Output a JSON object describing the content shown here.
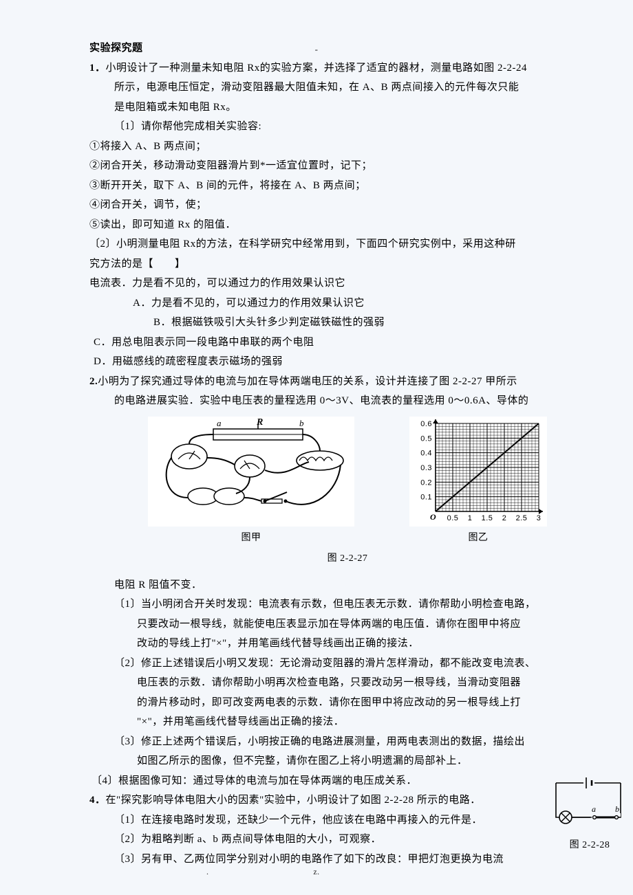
{
  "page": {
    "top_dash": "-",
    "footer_dot": ".",
    "footer_center": "z."
  },
  "heading": "实验探究题",
  "q1": {
    "num": "1．",
    "line1": "小明设计了一种测量未知电阻 Rx的实验方案，并选择了适宜的器材，测量电路如图 2-2-24",
    "line2": "所示，电源电压恒定，滑动变阻器最大阻值未知，在 A、B 两点间接入的元件每次只能",
    "line3": "是电阻箱或未知电阻 Rx。",
    "sub1": "〔1〕请你帮他完成相关实验容:",
    "p1": "①将接入 A、B 两点间；",
    "p2": "②闭合开关，移动滑动变阻器滑片到*一适宜位置时，记下；",
    "p3": "③断开开关，取下 A、B 间的元件，将接在 A、B 两点间；",
    "p4": "④闭合开关，调节，使；",
    "p5": "⑤读出，即可知道 Rx 的阻值．",
    "sub2a": "〔2〕小明测量电阻 Rx的方法，在科学研究中经常用到，下面四个研究实例中，采用这种研",
    "sub2b": "究方法的是【　　】",
    "hint": "电流表．力是看不见的，可以通过力的作用效果认识它",
    "optA": "A．力是看不见的，可以通过力的作用效果认识它",
    "optB": "B．根据磁铁吸引大头针多少判定磁铁磁性的强弱",
    "optC": "C．用总电阻表示同一段电路中串联的两个电阻",
    "optD": "D．用磁感线的疏密程度表示磁场的强弱"
  },
  "q2": {
    "num": "2.",
    "line1": "小明为了探究通过导体的电流与加在导体两端电压的关系，设计并连接了图 2-2-27 甲所示",
    "line2": "的电路进展实验．实验中电压表的量程选用 0～3V、电流表的量程选用 0～0.6A、导体的",
    "fig_left_caption": "图甲",
    "fig_right_caption": "图乙",
    "fig_main_caption": "图 2-2-27",
    "fig_left_labels": {
      "a": "a",
      "R": "R",
      "b": "b"
    },
    "chart": {
      "type": "line",
      "background": "#ffffff",
      "axis_color": "#000000",
      "grid_color": "#000000",
      "line_color": "#000000",
      "line_width": 2,
      "xlim": [
        0,
        3
      ],
      "ylim": [
        0,
        0.6
      ],
      "xticks": [
        0.5,
        1,
        1.5,
        2,
        2.5,
        3
      ],
      "xtick_labels": [
        "0.5",
        "1",
        "1.5",
        "2",
        "2.5",
        "3"
      ],
      "yticks": [
        0.1,
        0.2,
        0.3,
        0.4,
        0.5,
        0.6
      ],
      "ytick_labels": [
        "0.1",
        "0.2",
        "0.3",
        "0.4",
        "0.5",
        "0.6"
      ],
      "origin_label": "O",
      "line_points": [
        [
          0,
          0
        ],
        [
          3,
          0.6
        ]
      ],
      "tick_fontsize": 11
    },
    "line3": "电阻 R 阻值不变．",
    "s1a": "〔1〕当小明闭合开关时发现：电流表有示数，但电压表无示数．请你帮助小明检查电路，",
    "s1b": "只要改动一根导线，就能使电压表显示加在导体两端的电压值．请你在图甲中将应",
    "s1c": "改动的导线上打\"×\"，并用笔画线代替导线画出正确的接法．",
    "s2a": "〔2〕修正上述错误后小明又发现：无论滑动变阻器的滑片怎样滑动，都不能改变电流表、",
    "s2b": "电压表的示数．请你帮助小明再次检查电路，只要改动另一根导线，当滑动变阻器",
    "s2c": "的滑片移动时，即可改变两电表的示数．请你在图甲中将应改动的另一根导线上打",
    "s2d": "\"×\"，并用笔画线代替导线画出正确的接法．",
    "s3a": "〔3〕修正上述两个错误后，小明按正确的电路进展测量，用两电表测出的数据，描绘出",
    "s3b": "如图乙所示的图像，但不完整，请你在图乙上将小明遗漏的局部补上．",
    "s4": "〔4〕根据图像可知：通过导体的电流与加在导体两端的电压成关系．"
  },
  "q4": {
    "num": "4．",
    "line1": "在\"探究影响导体电阻大小的因素\"实验中，小明设计了如图 2-2-28 所示的电路．",
    "s1": "〔1〕在连接电路时发现，还缺少一个元件，他应该在电路中再接入的元件是．",
    "s2": "〔2〕为粗略判断 a、b 两点间导体电阻的大小，可观察．",
    "s3": "〔3〕另有甲、乙两位同学分别对小明的电路作了如下的改良：甲把灯泡更换为电流",
    "cap": "图 2-2-28",
    "labels": {
      "a": "a",
      "b": "b"
    },
    "circuit": {
      "type": "diagram",
      "line_color": "#000000",
      "line_width": 1.6,
      "background": "#f4f7fb"
    }
  }
}
